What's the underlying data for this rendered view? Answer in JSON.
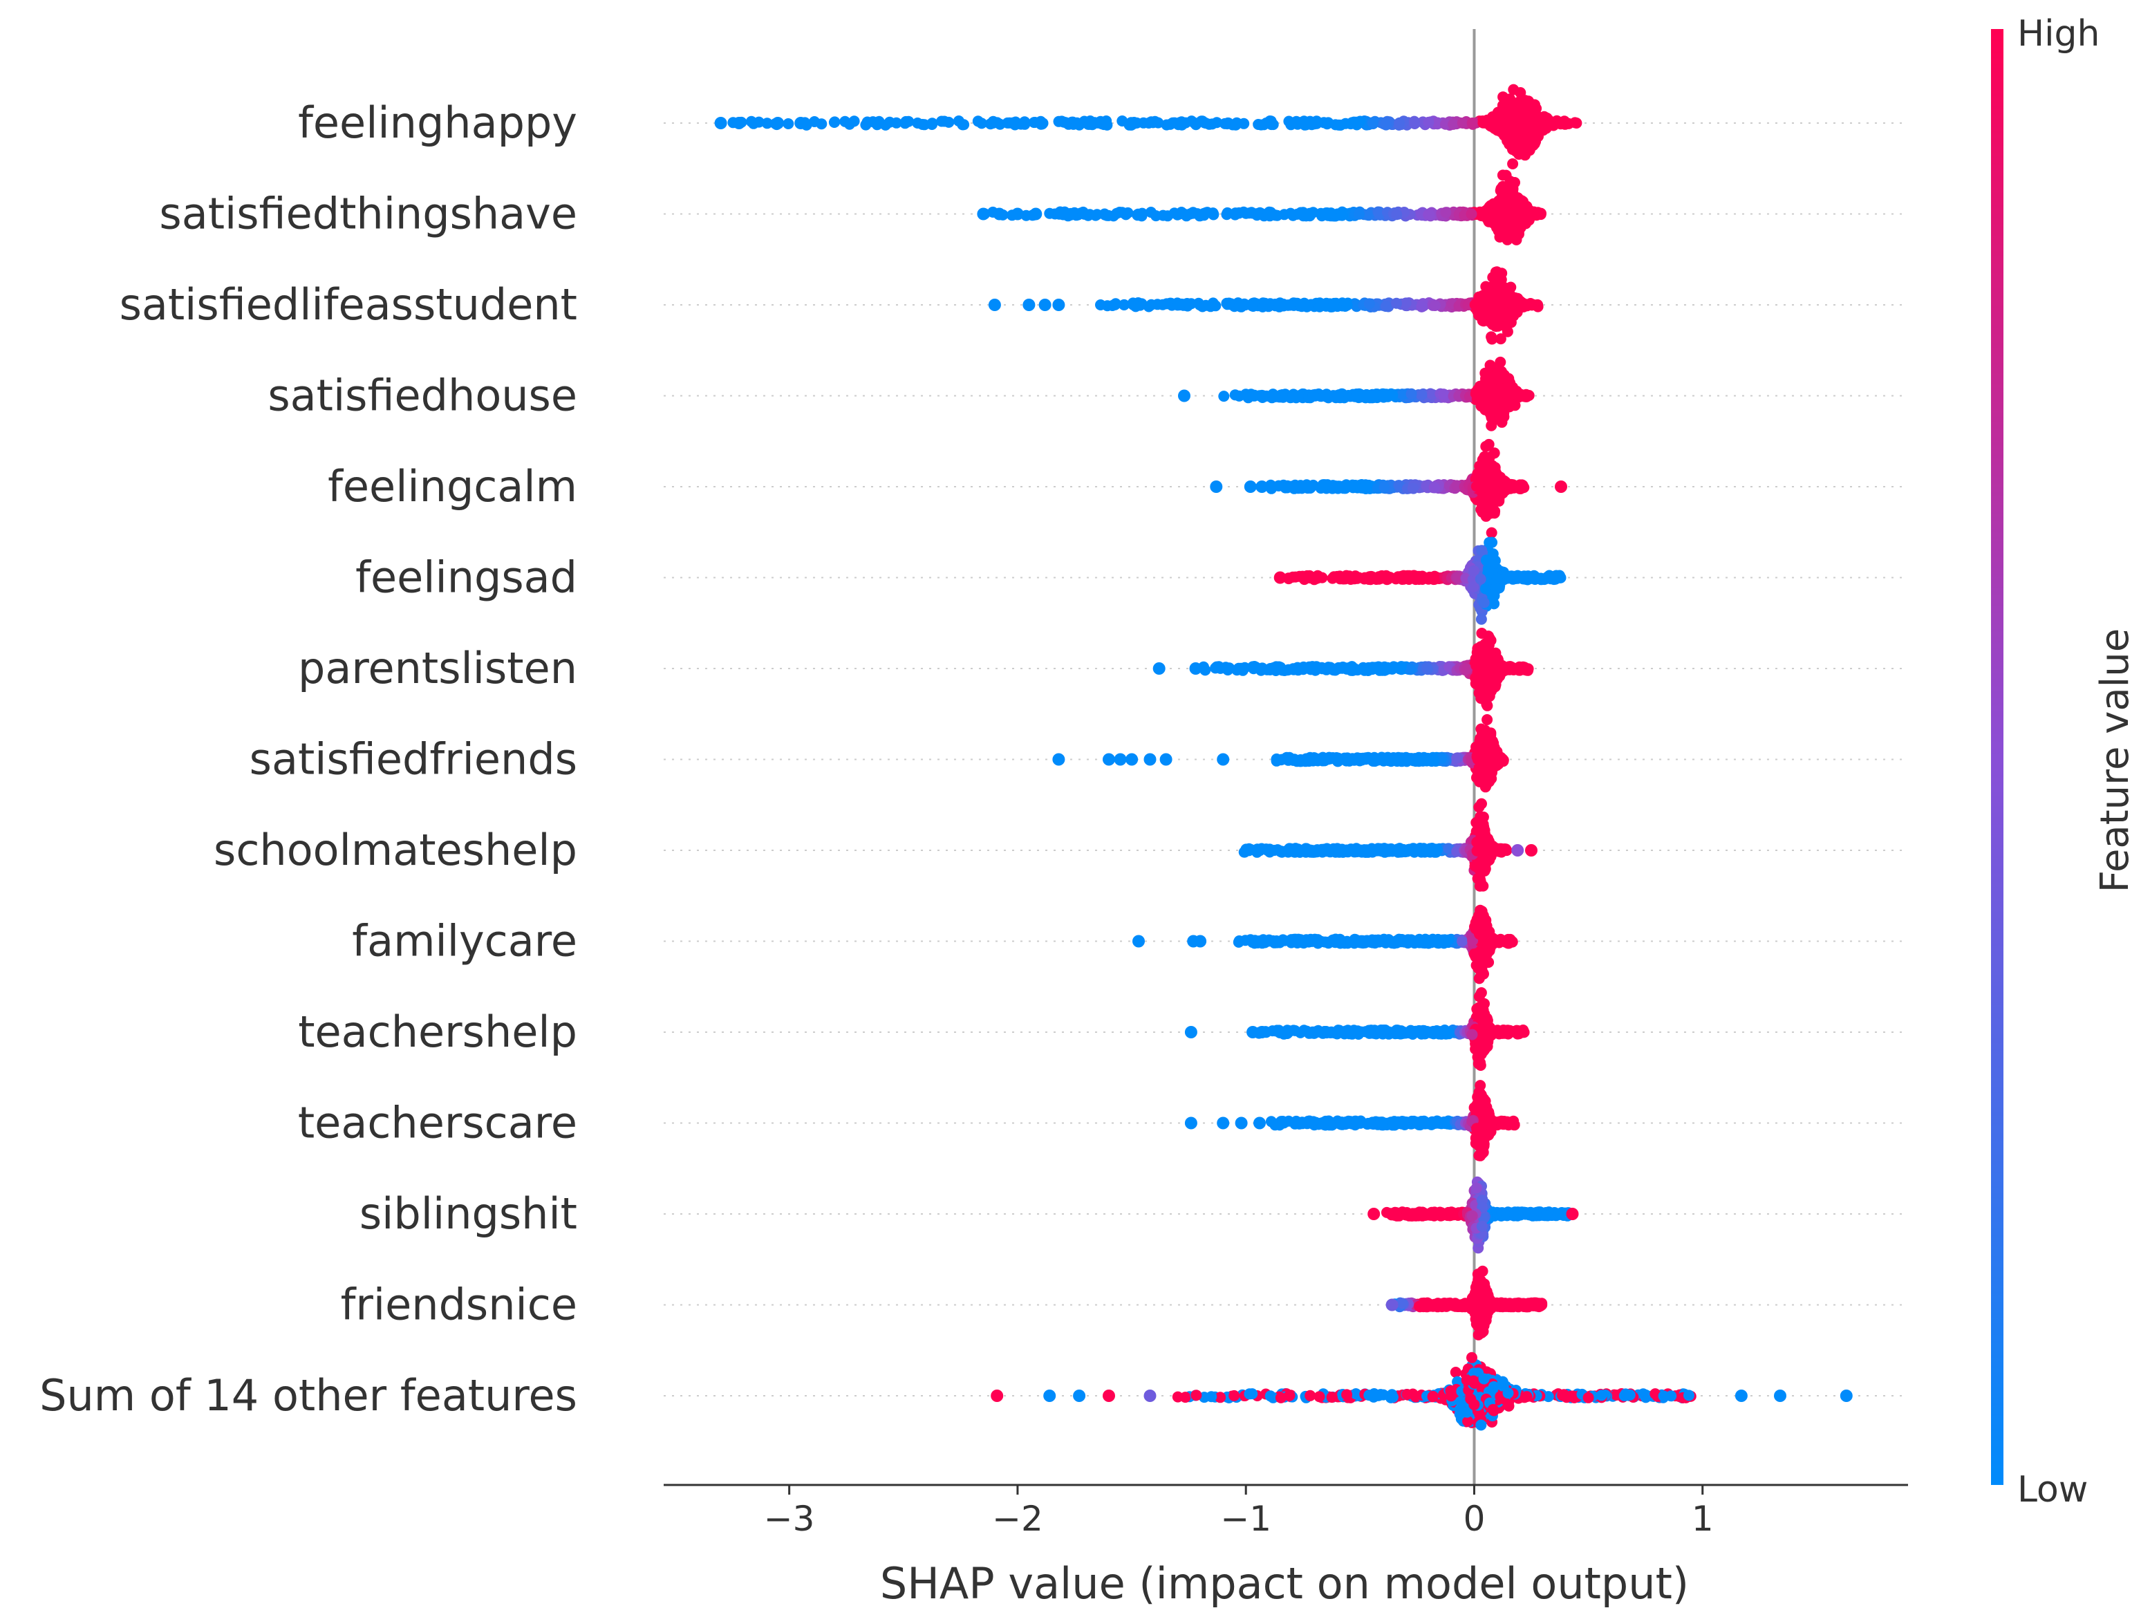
{
  "chart_data": {
    "type": "scatter",
    "subtype": "shap-beeswarm",
    "xlabel": "SHAP value (impact on model output)",
    "xlim": [
      -3.55,
      1.9
    ],
    "xticks": [
      {
        "value": -3,
        "label": "−3"
      },
      {
        "value": -2,
        "label": "−2"
      },
      {
        "value": -1,
        "label": "−1"
      },
      {
        "value": 0,
        "label": "0"
      },
      {
        "value": 1,
        "label": "1"
      }
    ],
    "colorbar": {
      "title": "Feature value",
      "high_label": "High",
      "low_label": "Low",
      "high_color": "#ff0052",
      "mid_color": "#8a4fd6",
      "low_color": "#008bfb"
    },
    "features": [
      {
        "name": "feelinghappy",
        "min": -3.35,
        "max": 0.46,
        "core": 0.2,
        "spread": 0.16,
        "direction": "positive",
        "mix_low": -0.5,
        "mix_high": 0.02,
        "outliers": [
          {
            "x": -3.3,
            "v": 0
          },
          {
            "x": -3.22,
            "v": 0
          },
          {
            "x": -3.05,
            "v": 0
          },
          {
            "x": -2.95,
            "v": 0
          }
        ],
        "low_outliers": []
      },
      {
        "name": "satisfiedthingshave",
        "min": -2.15,
        "max": 0.3,
        "core": 0.15,
        "spread": 0.12,
        "direction": "positive",
        "mix_low": -0.55,
        "mix_high": 0.0,
        "outliers": [
          {
            "x": -2.15,
            "v": 0
          },
          {
            "x": -2.08,
            "v": 0
          },
          {
            "x": -2.0,
            "v": 0
          },
          {
            "x": -1.92,
            "v": 0
          },
          {
            "x": -1.8,
            "v": 0
          }
        ],
        "low_outliers": []
      },
      {
        "name": "satisfiedlifeasstudent",
        "min": -1.65,
        "max": 0.28,
        "core": 0.1,
        "spread": 0.12,
        "direction": "positive",
        "mix_low": -0.55,
        "mix_high": 0.0,
        "outliers": [
          {
            "x": -2.1,
            "v": 0
          },
          {
            "x": -1.95,
            "v": 0
          },
          {
            "x": -1.88,
            "v": 0
          },
          {
            "x": -1.82,
            "v": 0
          }
        ],
        "low_outliers": []
      },
      {
        "name": "satisfiedhouse",
        "min": -1.1,
        "max": 0.24,
        "core": 0.1,
        "spread": 0.11,
        "direction": "positive",
        "mix_low": -0.35,
        "mix_high": 0.0,
        "outliers": [
          {
            "x": -1.27,
            "v": 0
          }
        ],
        "low_outliers": []
      },
      {
        "name": "feelingcalm",
        "min": -0.9,
        "max": 0.22,
        "core": 0.06,
        "spread": 0.1,
        "direction": "positive",
        "mix_low": -0.45,
        "mix_high": 0.0,
        "outliers": [
          {
            "x": -1.13,
            "v": 0
          },
          {
            "x": -0.98,
            "v": 0
          },
          {
            "x": -0.93,
            "v": 0
          },
          {
            "x": 0.38,
            "v": 1
          }
        ],
        "low_outliers": []
      },
      {
        "name": "feelingsad",
        "min": -0.82,
        "max": 0.38,
        "core": 0.05,
        "spread": 0.1,
        "direction": "negative",
        "mix_low": -0.15,
        "mix_high": 0.05,
        "outliers": [
          {
            "x": -0.85,
            "v": 1
          }
        ],
        "low_outliers": []
      },
      {
        "name": "parentslisten",
        "min": -1.2,
        "max": 0.24,
        "core": 0.05,
        "spread": 0.09,
        "direction": "positive",
        "mix_low": -0.3,
        "mix_high": 0.0,
        "outliers": [
          {
            "x": -1.38,
            "v": 0
          },
          {
            "x": -1.22,
            "v": 0
          }
        ],
        "low_outliers": []
      },
      {
        "name": "satisfiedfriends",
        "min": -0.95,
        "max": 0.13,
        "core": 0.05,
        "spread": 0.07,
        "direction": "positive",
        "mix_low": -0.15,
        "mix_high": 0.0,
        "outliers": [
          {
            "x": -1.82,
            "v": 0
          },
          {
            "x": -1.6,
            "v": 0
          },
          {
            "x": -1.55,
            "v": 0
          },
          {
            "x": -1.5,
            "v": 0
          },
          {
            "x": -1.42,
            "v": 0
          },
          {
            "x": -1.35,
            "v": 0
          },
          {
            "x": -1.1,
            "v": 0
          }
        ],
        "low_outliers": []
      },
      {
        "name": "schoolmateshelp",
        "min": -1.05,
        "max": 0.15,
        "core": 0.03,
        "spread": 0.06,
        "direction": "positive",
        "mix_low": -0.15,
        "mix_high": 0.0,
        "outliers": [
          {
            "x": 0.19,
            "v": 0.5
          },
          {
            "x": 0.25,
            "v": 1
          }
        ],
        "low_outliers": []
      },
      {
        "name": "familycare",
        "min": -1.05,
        "max": 0.17,
        "core": 0.03,
        "spread": 0.06,
        "direction": "positive",
        "mix_low": -0.1,
        "mix_high": 0.0,
        "outliers": [
          {
            "x": -1.47,
            "v": 0
          },
          {
            "x": -1.23,
            "v": 0
          },
          {
            "x": -1.2,
            "v": 0
          }
        ],
        "low_outliers": []
      },
      {
        "name": "teachershelp",
        "min": -0.95,
        "max": 0.22,
        "core": 0.03,
        "spread": 0.05,
        "direction": "positive",
        "mix_low": -0.1,
        "mix_high": 0.0,
        "outliers": [
          {
            "x": -1.24,
            "v": 0
          },
          {
            "x": -0.97,
            "v": 0
          },
          {
            "x": -0.93,
            "v": 0
          },
          {
            "x": -0.85,
            "v": 0
          }
        ],
        "low_outliers": []
      },
      {
        "name": "teacherscare",
        "min": -0.9,
        "max": 0.18,
        "core": 0.03,
        "spread": 0.05,
        "direction": "positive",
        "mix_low": -0.1,
        "mix_high": 0.0,
        "outliers": [
          {
            "x": -1.24,
            "v": 0
          },
          {
            "x": -1.1,
            "v": 0
          },
          {
            "x": -1.02,
            "v": 0
          },
          {
            "x": -0.94,
            "v": 0
          }
        ],
        "low_outliers": []
      },
      {
        "name": "siblingshit",
        "min": -0.42,
        "max": 0.42,
        "core": 0.02,
        "spread": 0.05,
        "direction": "negative",
        "mix_low": -0.05,
        "mix_high": 0.05,
        "outliers": [
          {
            "x": -0.44,
            "v": 1
          },
          {
            "x": 0.43,
            "v": 1
          }
        ],
        "low_outliers": []
      },
      {
        "name": "friendsnice",
        "min": -0.35,
        "max": 0.3,
        "core": 0.03,
        "spread": 0.05,
        "direction": "positive",
        "mix_low": -0.35,
        "mix_high": -0.25,
        "outliers": [
          {
            "x": -0.36,
            "v": 0.4
          }
        ],
        "low_outliers": []
      },
      {
        "name": "Sum of 14 other features",
        "min": -1.35,
        "max": 0.95,
        "core": 0.02,
        "spread": 0.2,
        "direction": "mixed",
        "mix_low": -0.1,
        "mix_high": 0.1,
        "outliers": [
          {
            "x": -2.09,
            "v": 1
          },
          {
            "x": -1.86,
            "v": 0
          },
          {
            "x": -1.73,
            "v": 0
          },
          {
            "x": -1.6,
            "v": 1
          },
          {
            "x": -1.42,
            "v": 0.4
          },
          {
            "x": 1.17,
            "v": 0
          },
          {
            "x": 1.34,
            "v": 0
          },
          {
            "x": 1.63,
            "v": 0
          }
        ],
        "low_outliers": []
      }
    ]
  }
}
